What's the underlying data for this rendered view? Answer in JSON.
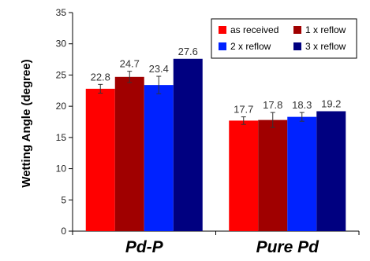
{
  "chart_data": {
    "type": "bar",
    "title": "",
    "xlabel": "",
    "ylabel": "Wetting Angle (degree)",
    "categories": [
      "Pd-P",
      "Pure Pd"
    ],
    "ylim": [
      0,
      35
    ],
    "yticks": [
      0,
      5,
      10,
      15,
      20,
      25,
      30,
      35
    ],
    "grid": false,
    "legend_position": "top-right",
    "series": [
      {
        "name": "as received",
        "color": "#ff0000",
        "values": [
          22.8,
          17.7
        ],
        "labels": [
          "22.8",
          "17.7"
        ],
        "error": [
          0.7,
          0.6
        ]
      },
      {
        "name": "1 x reflow",
        "color": "#a00000",
        "values": [
          24.7,
          17.8
        ],
        "labels": [
          "24.7",
          "17.8"
        ],
        "error": [
          0.9,
          1.2
        ]
      },
      {
        "name": "2 x reflow",
        "color": "#0022ff",
        "values": [
          23.4,
          18.3
        ],
        "labels": [
          "23.4",
          "18.3"
        ],
        "error": [
          1.4,
          0.7
        ]
      },
      {
        "name": "3 x reflow",
        "color": "#000080",
        "values": [
          27.6,
          19.2
        ],
        "labels": [
          "27.6",
          "19.2"
        ],
        "error": [
          0,
          0
        ]
      }
    ]
  }
}
